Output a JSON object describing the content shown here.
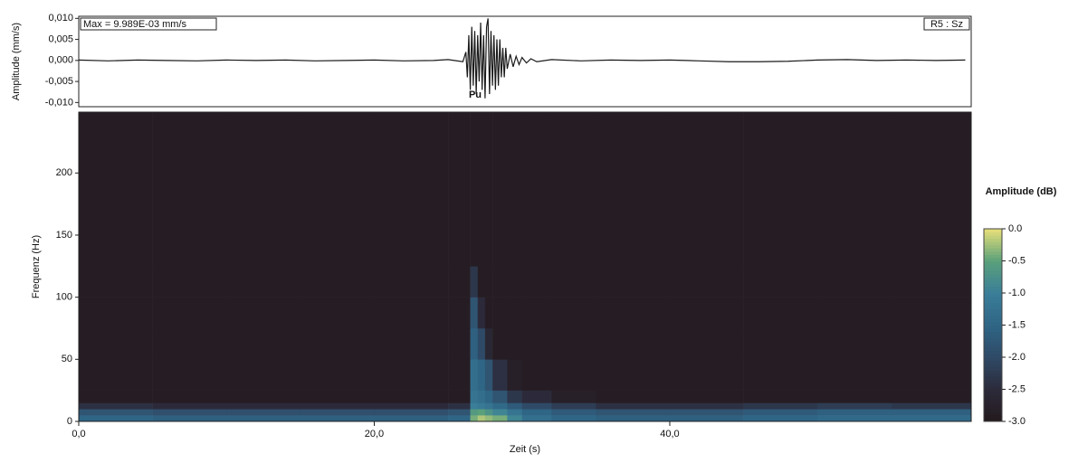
{
  "chart_data": [
    {
      "type": "line",
      "ylabel": "Amplitude (mm/s)",
      "annotations": {
        "max_label": "Max = 9.989E-03 mm/s",
        "station": "R5 : Sz",
        "phase": "Pu"
      },
      "color": "#1a1a1a",
      "xlim": [
        0,
        60.4
      ],
      "ylim": [
        -0.011,
        0.0105
      ],
      "yticks": [
        {
          "value": 0.01,
          "label": "0,010"
        },
        {
          "value": 0.005,
          "label": "0,005"
        },
        {
          "value": 0,
          "label": "0,000"
        },
        {
          "value": -0.005,
          "label": "-0,005"
        },
        {
          "value": -0.01,
          "label": "-0,010"
        }
      ],
      "x": [
        0,
        2,
        4,
        6,
        8,
        10,
        12,
        14,
        16,
        18,
        20,
        22,
        24,
        25,
        26,
        26.2,
        26.3,
        26.4,
        26.5,
        26.6,
        26.7,
        26.8,
        26.9,
        27.0,
        27.1,
        27.2,
        27.3,
        27.4,
        27.5,
        27.6,
        27.7,
        27.8,
        27.9,
        28.0,
        28.1,
        28.2,
        28.3,
        28.4,
        28.5,
        28.6,
        28.7,
        28.8,
        28.9,
        29.0,
        29.2,
        29.4,
        29.6,
        29.8,
        30.0,
        30.3,
        30.6,
        31,
        32,
        34,
        36,
        38,
        40,
        42,
        44,
        46,
        48,
        50,
        52,
        54,
        56,
        58,
        60
      ],
      "values": [
        0.0001,
        -0.0001,
        0.0001,
        0,
        -0.0001,
        0.0001,
        0,
        0.0001,
        -0.0001,
        0,
        0.0001,
        -0.0001,
        0,
        0.0002,
        -0.0003,
        0.002,
        -0.004,
        0.006,
        -0.007,
        0.008,
        -0.006,
        0.007,
        -0.008,
        0.006,
        -0.005,
        0.009,
        -0.007,
        0.006,
        -0.009,
        0.008,
        0.009989,
        -0.008,
        0.007,
        -0.006,
        0.006,
        -0.007,
        0.005,
        -0.006,
        0.005,
        -0.004,
        0.003,
        -0.004,
        0.003,
        -0.002,
        0.0015,
        -0.0015,
        0.001,
        -0.001,
        0.0007,
        -0.0006,
        0.0004,
        -0.0003,
        0.0002,
        -0.0001,
        0.0001,
        0,
        0.0001,
        -0.0001,
        -0.0003,
        -0.0003,
        -0.0002,
        0.0001,
        0.0002,
        0,
        0.0001,
        0,
        0.0001
      ]
    },
    {
      "type": "heatmap",
      "xlabel": "Zeit (s)",
      "ylabel": "Frequenz (Hz)",
      "xlim": [
        0,
        60.4
      ],
      "ylim": [
        0,
        249
      ],
      "xticks": [
        {
          "value": 0,
          "label": "0,0"
        },
        {
          "value": 20,
          "label": "20,0"
        },
        {
          "value": 40,
          "label": "40,0"
        }
      ],
      "yticks": [
        0,
        50,
        100,
        150,
        200
      ],
      "x_edges": [
        0,
        5,
        10,
        15,
        20,
        25,
        26.5,
        27,
        27.5,
        28,
        29,
        30,
        32,
        35,
        40,
        45,
        50,
        55,
        60.4
      ],
      "y_edges": [
        0,
        5,
        10,
        15,
        25,
        50,
        75,
        100,
        125,
        249
      ],
      "z": [
        [
          -1.5,
          -1.6,
          -1.6,
          -1.6,
          -1.6,
          -1.5,
          -0.4,
          -0.2,
          -0.3,
          -0.4,
          -0.9,
          -1.3,
          -1.5,
          -1.6,
          -1.6,
          -1.5,
          -1.4,
          -1.4
        ],
        [
          -1.8,
          -1.9,
          -1.9,
          -1.9,
          -1.9,
          -1.8,
          -0.6,
          -0.5,
          -0.7,
          -0.9,
          -1.2,
          -1.5,
          -1.7,
          -1.8,
          -1.8,
          -1.7,
          -1.6,
          -1.6
        ],
        [
          -2.4,
          -2.5,
          -2.5,
          -2.5,
          -2.5,
          -2.4,
          -1.0,
          -1.1,
          -1.2,
          -1.4,
          -1.7,
          -2.0,
          -2.2,
          -2.4,
          -2.4,
          -2.3,
          -2.2,
          -2.3
        ],
        [
          -2.9,
          -2.9,
          -2.9,
          -2.9,
          -2.9,
          -2.9,
          -1.2,
          -1.3,
          -1.5,
          -1.8,
          -2.3,
          -2.5,
          -2.8,
          -2.9,
          -2.9,
          -2.9,
          -2.9,
          -2.9
        ],
        [
          -2.9,
          -2.9,
          -2.9,
          -2.9,
          -2.9,
          -2.9,
          -1.3,
          -1.5,
          -1.8,
          -2.4,
          -2.8,
          -2.9,
          -2.9,
          -2.9,
          -2.9,
          -2.9,
          -2.9,
          -2.9
        ],
        [
          -2.9,
          -2.9,
          -2.9,
          -2.9,
          -2.9,
          -2.9,
          -1.6,
          -2.0,
          -2.6,
          -2.9,
          -2.9,
          -2.9,
          -2.9,
          -2.9,
          -2.9,
          -2.9,
          -2.9,
          -2.9
        ],
        [
          -2.9,
          -2.9,
          -2.9,
          -2.9,
          -2.9,
          -2.9,
          -1.8,
          -2.5,
          -2.9,
          -2.9,
          -2.9,
          -2.9,
          -2.9,
          -2.9,
          -2.9,
          -2.9,
          -2.9,
          -2.9
        ],
        [
          -2.9,
          -2.9,
          -2.9,
          -2.9,
          -2.9,
          -2.9,
          -2.3,
          -2.9,
          -2.9,
          -2.9,
          -2.9,
          -2.9,
          -2.9,
          -2.9,
          -2.9,
          -2.9,
          -2.9,
          -2.9
        ],
        [
          -2.9,
          -2.9,
          -2.9,
          -2.9,
          -2.9,
          -2.9,
          -2.9,
          -2.9,
          -2.9,
          -2.9,
          -2.9,
          -2.9,
          -2.9,
          -2.9,
          -2.9,
          -2.9,
          -2.9,
          -2.9
        ]
      ],
      "colorbar": {
        "label": "Amplitude (dB)",
        "lim": [
          -3,
          0
        ],
        "colormap": [
          "#241a1e",
          "#2c2a3a",
          "#2f4a66",
          "#2f6585",
          "#3a7e99",
          "#5aa07a",
          "#e8e07a"
        ],
        "ticks": [
          {
            "value": 0,
            "label": "0.0"
          },
          -0.5,
          {
            "value": -1,
            "label": "-1.0"
          },
          -1.5,
          {
            "value": -2,
            "label": "-2.0"
          },
          -2.5,
          {
            "value": -3,
            "label": "-3.0"
          }
        ]
      }
    }
  ]
}
